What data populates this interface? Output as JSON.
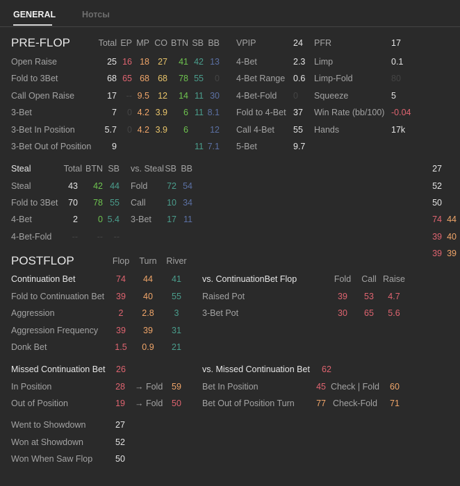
{
  "palette": {
    "white": "#e4e4e4",
    "red": "#df6470",
    "orange": "#f0a569",
    "yellow": "#e9c46a",
    "green": "#6ec34f",
    "teal": "#4a9d8c",
    "blue": "#5b70a3",
    "dim": "#444444",
    "label": "#a3a3a3"
  },
  "tabs": [
    {
      "label": "GENERAL",
      "active": true
    },
    {
      "label": "Нотсы",
      "active": false
    }
  ],
  "preflop": {
    "title": "PRE-FLOP",
    "headers": [
      "Total",
      "EP",
      "MP",
      "CO",
      "BTN",
      "SB",
      "BB"
    ],
    "rows": [
      {
        "label": "Open Raise",
        "values": [
          {
            "v": "25",
            "c": "white"
          },
          {
            "v": "16",
            "c": "red"
          },
          {
            "v": "18",
            "c": "orange"
          },
          {
            "v": "27",
            "c": "yellow"
          },
          {
            "v": "41",
            "c": "green"
          },
          {
            "v": "42",
            "c": "teal"
          },
          {
            "v": "13",
            "c": "blue"
          }
        ]
      },
      {
        "label": "Fold to 3Bet",
        "values": [
          {
            "v": "68",
            "c": "white"
          },
          {
            "v": "65",
            "c": "red"
          },
          {
            "v": "68",
            "c": "orange"
          },
          {
            "v": "68",
            "c": "yellow"
          },
          {
            "v": "78",
            "c": "green"
          },
          {
            "v": "55",
            "c": "teal"
          },
          {
            "v": "0",
            "c": "dim"
          }
        ]
      },
      {
        "label": "Call Open Raise",
        "values": [
          {
            "v": "17",
            "c": "white"
          },
          {
            "v": "--",
            "c": "dim"
          },
          {
            "v": "9.5",
            "c": "orange"
          },
          {
            "v": "12",
            "c": "yellow"
          },
          {
            "v": "14",
            "c": "green"
          },
          {
            "v": "11",
            "c": "teal"
          },
          {
            "v": "30",
            "c": "blue"
          }
        ]
      },
      {
        "label": "3-Bet",
        "values": [
          {
            "v": "7",
            "c": "white"
          },
          {
            "v": "0",
            "c": "dim"
          },
          {
            "v": "4.2",
            "c": "orange"
          },
          {
            "v": "3.9",
            "c": "yellow"
          },
          {
            "v": "6",
            "c": "green"
          },
          {
            "v": "11",
            "c": "teal"
          },
          {
            "v": "8.1",
            "c": "blue"
          }
        ]
      },
      {
        "label": "3-Bet In Position",
        "values": [
          {
            "v": "5.7",
            "c": "white"
          },
          {
            "v": "0",
            "c": "dim"
          },
          {
            "v": "4.2",
            "c": "orange"
          },
          {
            "v": "3.9",
            "c": "yellow"
          },
          {
            "v": "6",
            "c": "green"
          },
          {
            "v": "",
            "c": "teal"
          },
          {
            "v": "12",
            "c": "blue"
          }
        ]
      },
      {
        "label": "3-Bet Out of Position",
        "values": [
          {
            "v": "9",
            "c": "white"
          },
          {
            "v": "",
            "c": "dim"
          },
          {
            "v": "",
            "c": "orange"
          },
          {
            "v": "",
            "c": "yellow"
          },
          {
            "v": "",
            "c": "green"
          },
          {
            "v": "11",
            "c": "teal"
          },
          {
            "v": "7.1",
            "c": "blue"
          }
        ]
      }
    ],
    "side1": [
      {
        "label": "VPIP",
        "v": "24",
        "c": "white"
      },
      {
        "label": "4-Bet",
        "v": "2.3",
        "c": "white"
      },
      {
        "label": "4-Bet Range",
        "v": "0.6",
        "c": "white"
      },
      {
        "label": "4-Bet-Fold",
        "v": "0",
        "c": "dim"
      },
      {
        "label": "Fold to 4-Bet",
        "v": "37",
        "c": "white"
      },
      {
        "label": "Call 4-Bet",
        "v": "55",
        "c": "white"
      },
      {
        "label": "5-Bet",
        "v": "9.7",
        "c": "white"
      }
    ],
    "side2": [
      {
        "label": "PFR",
        "v": "17",
        "c": "white"
      },
      {
        "label": "Limp",
        "v": "0.1",
        "c": "white"
      },
      {
        "label": "Limp-Fold",
        "v": "80",
        "c": "dim"
      },
      {
        "label": "Squeeze",
        "v": "5",
        "c": "white"
      },
      {
        "label": "Win Rate (bb/100)",
        "v": "-0.04",
        "c": "red"
      },
      {
        "label": "Hands",
        "v": "17k",
        "c": "white"
      }
    ]
  },
  "steal": {
    "title": "Steal",
    "headers": [
      "Total",
      "BTN",
      "SB"
    ],
    "vs_title": "vs. Steal",
    "vs_headers": [
      "SB",
      "BB"
    ],
    "rows": [
      {
        "label": "Steal",
        "values": [
          {
            "v": "43",
            "c": "white"
          },
          {
            "v": "42",
            "c": "green"
          },
          {
            "v": "44",
            "c": "teal"
          }
        ],
        "vs_label": "Fold",
        "vs_values": [
          {
            "v": "72",
            "c": "teal"
          },
          {
            "v": "54",
            "c": "blue"
          }
        ]
      },
      {
        "label": "Fold to 3Bet",
        "values": [
          {
            "v": "70",
            "c": "white"
          },
          {
            "v": "78",
            "c": "green"
          },
          {
            "v": "55",
            "c": "teal"
          }
        ],
        "vs_label": "Call",
        "vs_values": [
          {
            "v": "10",
            "c": "teal"
          },
          {
            "v": "34",
            "c": "blue"
          }
        ]
      },
      {
        "label": "4-Bet",
        "values": [
          {
            "v": "2",
            "c": "white"
          },
          {
            "v": "0",
            "c": "green"
          },
          {
            "v": "5.4",
            "c": "teal"
          }
        ],
        "vs_label": "3-Bet",
        "vs_values": [
          {
            "v": "17",
            "c": "teal"
          },
          {
            "v": "11",
            "c": "blue"
          }
        ]
      },
      {
        "label": "4-Bet-Fold",
        "values": [
          {
            "v": "--",
            "c": "dim"
          },
          {
            "v": "--",
            "c": "dim"
          },
          {
            "v": "--",
            "c": "dim"
          }
        ],
        "vs_label": "",
        "vs_values": []
      }
    ]
  },
  "right_column": [
    [
      {
        "v": "27",
        "c": "white"
      }
    ],
    [
      {
        "v": "52",
        "c": "white"
      }
    ],
    [
      {
        "v": "50",
        "c": "white"
      }
    ],
    [
      {
        "v": "74",
        "c": "red"
      },
      {
        "v": "44",
        "c": "orange"
      }
    ],
    [
      {
        "v": "39",
        "c": "red"
      },
      {
        "v": "40",
        "c": "orange"
      }
    ],
    [
      {
        "v": "39",
        "c": "red"
      },
      {
        "v": "39",
        "c": "orange"
      }
    ]
  ],
  "postflop": {
    "title": "POSTFLOP",
    "headers": [
      "Flop",
      "Turn",
      "River"
    ],
    "rows": [
      {
        "label": "Continuation Bet",
        "bold": true,
        "values": [
          {
            "v": "74",
            "c": "red"
          },
          {
            "v": "44",
            "c": "orange"
          },
          {
            "v": "41",
            "c": "teal"
          }
        ]
      },
      {
        "label": "Fold to Continuation Bet",
        "values": [
          {
            "v": "39",
            "c": "red"
          },
          {
            "v": "40",
            "c": "orange"
          },
          {
            "v": "55",
            "c": "teal"
          }
        ]
      },
      {
        "label": "Aggression",
        "values": [
          {
            "v": "2",
            "c": "red"
          },
          {
            "v": "2.8",
            "c": "orange"
          },
          {
            "v": "3",
            "c": "teal"
          }
        ]
      },
      {
        "label": "Aggression Frequency",
        "values": [
          {
            "v": "39",
            "c": "red"
          },
          {
            "v": "39",
            "c": "orange"
          },
          {
            "v": "31",
            "c": "teal"
          }
        ]
      },
      {
        "label": "Donk Bet",
        "values": [
          {
            "v": "1.5",
            "c": "red"
          },
          {
            "v": "0.9",
            "c": "orange"
          },
          {
            "v": "21",
            "c": "teal"
          }
        ]
      }
    ],
    "vs_cbet": {
      "title": "vs. ContinuationBet Flop",
      "headers": [
        "Fold",
        "Call",
        "Raise"
      ],
      "rows": [
        {
          "label": "Raised Pot",
          "values": [
            {
              "v": "39",
              "c": "red"
            },
            {
              "v": "53",
              "c": "red"
            },
            {
              "v": "4.7",
              "c": "red"
            }
          ]
        },
        {
          "label": "3-Bet Pot",
          "values": [
            {
              "v": "30",
              "c": "red"
            },
            {
              "v": "65",
              "c": "red"
            },
            {
              "v": "5.6",
              "c": "red"
            }
          ]
        }
      ]
    },
    "missed": {
      "title": "Missed Continuation Bet",
      "value": {
        "v": "26",
        "c": "red"
      },
      "rows": [
        {
          "label": "In Position",
          "v": {
            "v": "28",
            "c": "red"
          },
          "sub": "→ Fold",
          "sv": {
            "v": "59",
            "c": "orange"
          }
        },
        {
          "label": "Out of Position",
          "v": {
            "v": "19",
            "c": "red"
          },
          "sub": "→ Fold",
          "sv": {
            "v": "50",
            "c": "red"
          }
        }
      ]
    },
    "vs_missed": {
      "title": "vs. Missed Continuation Bet",
      "value": {
        "v": "62",
        "c": "red"
      },
      "rows": [
        {
          "label": "Bet In Position",
          "v": {
            "v": "45",
            "c": "red"
          },
          "sub": "Check | Fold",
          "sv": {
            "v": "60",
            "c": "orange"
          }
        },
        {
          "label": "Bet Out of Position Turn",
          "v": {
            "v": "77",
            "c": "orange"
          },
          "sub": "Check-Fold",
          "sv": {
            "v": "71",
            "c": "orange"
          }
        }
      ]
    },
    "showdown": [
      {
        "label": "Went to Showdown",
        "v": "27"
      },
      {
        "label": "Won at Showdown",
        "v": "52"
      },
      {
        "label": "Won When Saw Flop",
        "v": "50"
      }
    ]
  }
}
